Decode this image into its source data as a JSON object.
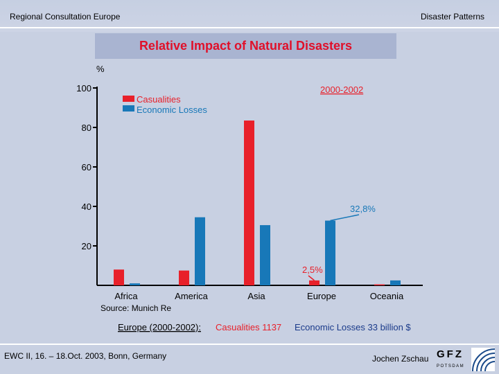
{
  "header": {
    "left": "Regional Consultation Europe",
    "right": "Disaster Patterns"
  },
  "chart_data": {
    "type": "bar",
    "title": "Relative Impact of Natural Disasters",
    "ylabel": "%",
    "period": "2000-2002",
    "categories": [
      "Africa",
      "America",
      "Asia",
      "Europe",
      "Oceania"
    ],
    "ylim": [
      0,
      100
    ],
    "yticks": [
      20,
      40,
      60,
      80,
      100
    ],
    "series": [
      {
        "name": "Casualities",
        "color": "#e8202a",
        "values": [
          8,
          7.5,
          83.5,
          2.5,
          0.5
        ]
      },
      {
        "name": "Economic Losses",
        "color": "#1878b8",
        "values": [
          1,
          34.5,
          30.5,
          32.8,
          2.5
        ]
      }
    ],
    "annotations": [
      {
        "text": "32,8%",
        "category": "Europe",
        "series": "Economic Losses"
      },
      {
        "text": "2,5%",
        "category": "Europe",
        "series": "Casualities"
      }
    ],
    "source": "Source:  Munich Re",
    "summary": {
      "label": "Europe (2000-2002):",
      "casualties": "Casualities 1137",
      "losses": "Economic Losses 33 billion $"
    }
  },
  "footer": {
    "left": "EWC II, 16. – 18.Oct. 2003, Bonn, Germany",
    "right": "Jochen Zschau",
    "logo_text": "GFZ",
    "logo_sub": "POTSDAM"
  },
  "colors": {
    "background": "#c8d0e2",
    "title_box": "#a9b4d1",
    "title_text": "#e0102a",
    "casualties": "#e8202a",
    "losses": "#1878b8"
  }
}
